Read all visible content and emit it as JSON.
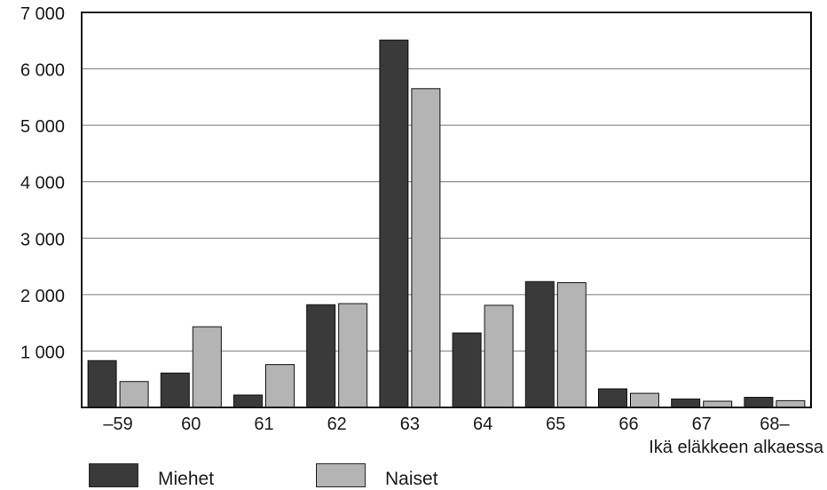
{
  "chart_data": {
    "type": "bar",
    "categories": [
      "–59",
      "60",
      "61",
      "62",
      "63",
      "64",
      "65",
      "66",
      "67",
      "68–"
    ],
    "series": [
      {
        "name": "Miehet",
        "values": [
          830,
          610,
          220,
          1820,
          6510,
          1320,
          2230,
          330,
          150,
          180
        ],
        "color": "#3a3a3a"
      },
      {
        "name": "Naiset",
        "values": [
          460,
          1430,
          760,
          1840,
          5650,
          1810,
          2210,
          250,
          110,
          120
        ],
        "color": "#b4b4b4"
      }
    ],
    "title": "",
    "xlabel": "Ikä eläkkeen alkaessa",
    "ylabel": "",
    "ylim": [
      0,
      7000
    ],
    "yticks": [
      1000,
      2000,
      3000,
      4000,
      5000,
      6000,
      7000
    ],
    "ytick_labels": [
      "1 000",
      "2 000",
      "3 000",
      "4 000",
      "5 000",
      "6 000",
      "7 000"
    ],
    "grid": true,
    "legend_position": "bottom-left"
  }
}
